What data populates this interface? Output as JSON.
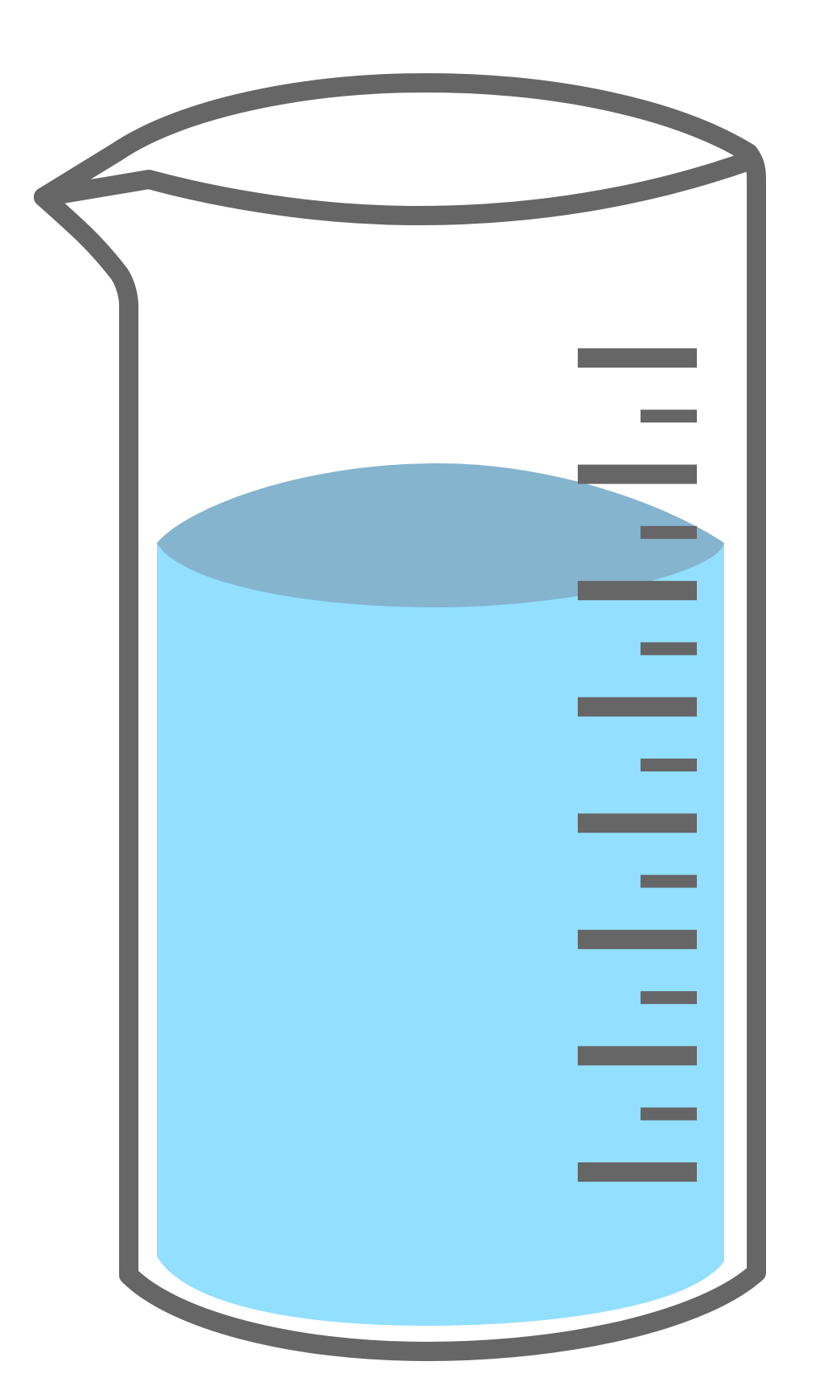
{
  "beaker": {
    "outline_color": "#666666",
    "background_color": "#ffffff",
    "liquid": {
      "side_color": "#92dfff",
      "surface_color": "#85b4cf"
    },
    "scale": {
      "major_ticks": 8,
      "minor_ticks": 7,
      "tick_color": "#666666"
    }
  }
}
